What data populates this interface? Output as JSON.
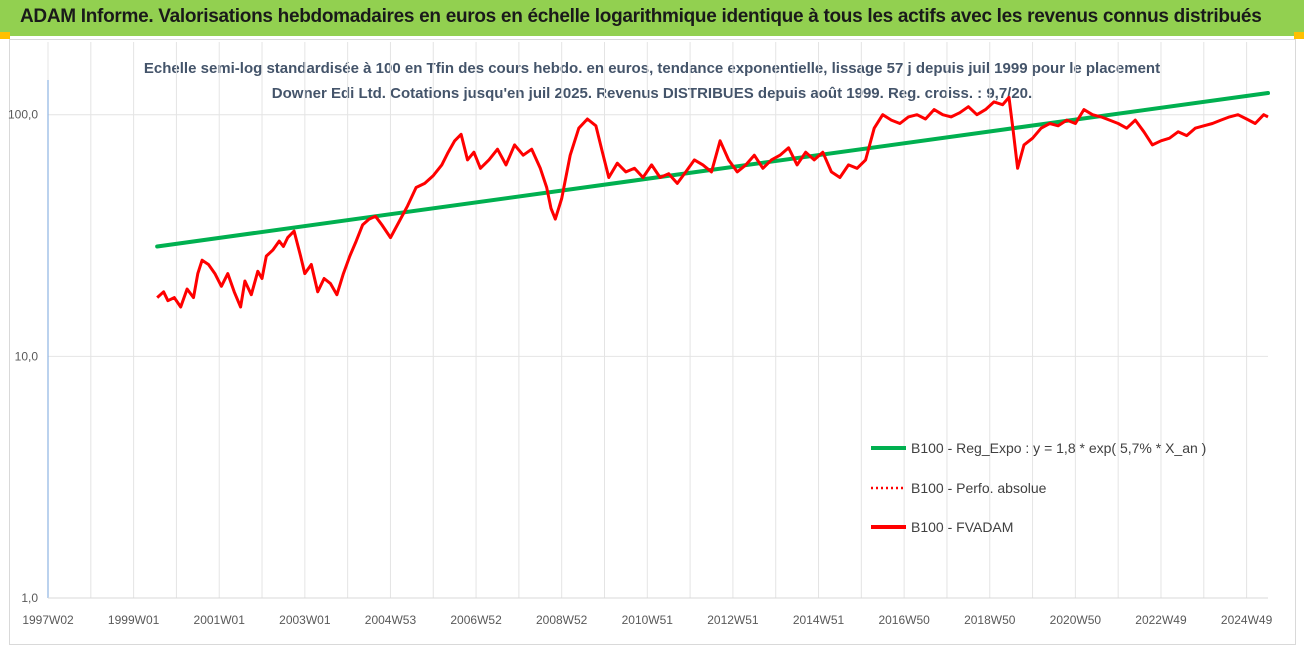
{
  "header": {
    "title": "ADAM Informe. Valorisations hebdomadaires en euros en échelle logarithmique identique à tous les actifs avec les revenus connus distribués"
  },
  "colors": {
    "header_bg": "#92d050",
    "corner": "#ffc000",
    "regression": "#00b050",
    "series": "#ff0000"
  },
  "chart_data": {
    "type": "line",
    "title": "Echelle semi-log standardisée à 100 en Tfin des cours hebdo. en euros, tendance exponentielle, lissage 57 j depuis juil 1999 pour le placement Downer Edi Ltd. Cotations jusqu'en juil 2025. Revenus DISTRIBUES depuis août 1999. Reg. croiss. : 9,7/20.",
    "y_scale": "log",
    "ylim": [
      1,
      200
    ],
    "y_ticks": [
      1,
      10,
      100
    ],
    "y_tick_labels": [
      "1,0",
      "10,0",
      "100,0"
    ],
    "x_range": [
      1997.0,
      2025.5
    ],
    "x_ticks": [
      1997.0,
      1999.0,
      2001.0,
      2003.0,
      2005.0,
      2007.0,
      2009.0,
      2011.0,
      2013.0,
      2015.0,
      2017.0,
      2019.0,
      2021.0,
      2023.0,
      2025.0
    ],
    "x_tick_labels": [
      "1997W02",
      "1999W01",
      "2001W01",
      "2003W01",
      "2004W53",
      "2006W52",
      "2008W52",
      "2010W51",
      "2012W51",
      "2014W51",
      "2016W50",
      "2018W50",
      "2020W50",
      "2022W49",
      "2024W49"
    ],
    "grid": "vertical and horizontal",
    "legend_position": "bottom-right",
    "legend": [
      {
        "label": "B100 - Reg_Expo : y = 1,8 * exp( 5,7% *  X_an )",
        "style": "solid",
        "color": "#00b050"
      },
      {
        "label": "B100 - Perfo. absolue",
        "style": "dotted",
        "color": "#ff0000"
      },
      {
        "label": "B100 - FVADAM",
        "style": "solid",
        "color": "#ff0000"
      }
    ],
    "series": [
      {
        "name": "B100 - Reg_Expo : y = 1,8 * exp( 5,7% *  X_an )",
        "x": [
          1999.55,
          2025.5
        ],
        "y": [
          28.5,
          123
        ]
      },
      {
        "name": "B100 - FVADAM",
        "x": [
          1999.55,
          1999.7,
          1999.8,
          1999.95,
          2000.1,
          2000.25,
          2000.4,
          2000.5,
          2000.6,
          2000.75,
          2000.9,
          2001.05,
          2001.2,
          2001.35,
          2001.5,
          2001.6,
          2001.75,
          2001.9,
          2002.0,
          2002.1,
          2002.25,
          2002.4,
          2002.5,
          2002.6,
          2002.75,
          2002.9,
          2003.0,
          2003.15,
          2003.3,
          2003.45,
          2003.6,
          2003.75,
          2003.9,
          2004.05,
          2004.2,
          2004.35,
          2004.5,
          2004.65,
          2004.8,
          2005.0,
          2005.2,
          2005.4,
          2005.6,
          2005.8,
          2006.0,
          2006.2,
          2006.35,
          2006.5,
          2006.65,
          2006.8,
          2006.95,
          2007.1,
          2007.3,
          2007.5,
          2007.7,
          2007.9,
          2008.1,
          2008.3,
          2008.5,
          2008.65,
          2008.75,
          2008.85,
          2009.0,
          2009.2,
          2009.4,
          2009.6,
          2009.8,
          2009.95,
          2010.1,
          2010.3,
          2010.5,
          2010.7,
          2010.9,
          2011.1,
          2011.3,
          2011.5,
          2011.7,
          2011.9,
          2012.1,
          2012.3,
          2012.5,
          2012.7,
          2012.9,
          2013.1,
          2013.3,
          2013.5,
          2013.7,
          2013.9,
          2014.1,
          2014.3,
          2014.5,
          2014.7,
          2014.9,
          2015.1,
          2015.3,
          2015.5,
          2015.7,
          2015.9,
          2016.1,
          2016.3,
          2016.5,
          2016.7,
          2016.9,
          2017.1,
          2017.3,
          2017.5,
          2017.7,
          2017.9,
          2018.1,
          2018.3,
          2018.5,
          2018.7,
          2018.9,
          2019.1,
          2019.3,
          2019.45,
          2019.55,
          2019.65,
          2019.8,
          2020.0,
          2020.2,
          2020.4,
          2020.6,
          2020.8,
          2021.0,
          2021.2,
          2021.4,
          2021.6,
          2021.8,
          2022.0,
          2022.2,
          2022.4,
          2022.6,
          2022.8,
          2023.0,
          2023.2,
          2023.4,
          2023.6,
          2023.8,
          2024.0,
          2024.2,
          2024.4,
          2024.6,
          2024.8,
          2025.0,
          2025.2,
          2025.4,
          2025.5
        ],
        "y": [
          17.5,
          18.5,
          17.0,
          17.5,
          16.0,
          19.0,
          17.5,
          22.0,
          25.0,
          24.0,
          22.0,
          19.5,
          22.0,
          18.5,
          16.0,
          20.5,
          18.0,
          22.5,
          21.0,
          26.0,
          27.5,
          30.0,
          28.5,
          31.0,
          33.0,
          26.0,
          22.0,
          24.0,
          18.5,
          21.0,
          20.0,
          18.0,
          22.0,
          26.0,
          30.0,
          35.0,
          37.0,
          38.0,
          35.0,
          31.0,
          36.0,
          42.0,
          50.0,
          52.0,
          56.0,
          62.0,
          70.0,
          78.0,
          83.0,
          65.0,
          70.0,
          60.0,
          65.0,
          72.0,
          62.0,
          75.0,
          68.0,
          72.0,
          60.0,
          50.0,
          41.0,
          37.0,
          45.0,
          68.0,
          88.0,
          96.0,
          90.0,
          70.0,
          55.0,
          63.0,
          58.0,
          60.0,
          55.0,
          62.0,
          55.0,
          57.0,
          52.0,
          58.0,
          65.0,
          62.0,
          58.0,
          78.0,
          65.0,
          58.0,
          62.0,
          68.0,
          60.0,
          65.0,
          68.0,
          73.0,
          62.0,
          70.0,
          65.0,
          70.0,
          58.0,
          55.0,
          62.0,
          60.0,
          65.0,
          88.0,
          100.0,
          95.0,
          92.0,
          98.0,
          100.0,
          96.0,
          105.0,
          100.0,
          98.0,
          102.0,
          108.0,
          100.0,
          105.0,
          113.0,
          110.0,
          118.0,
          85.0,
          60.0,
          75.0,
          80.0,
          88.0,
          92.0,
          90.0,
          95.0,
          92.0,
          105.0,
          100.0,
          98.0,
          95.0,
          92.0,
          88.0,
          95.0,
          85.0,
          75.0,
          78.0,
          80.0,
          85.0,
          82.0,
          88.0,
          90.0,
          92.0,
          95.0,
          98.0,
          100.0,
          96.0,
          92.0,
          100.0,
          98.0
        ]
      }
    ]
  }
}
